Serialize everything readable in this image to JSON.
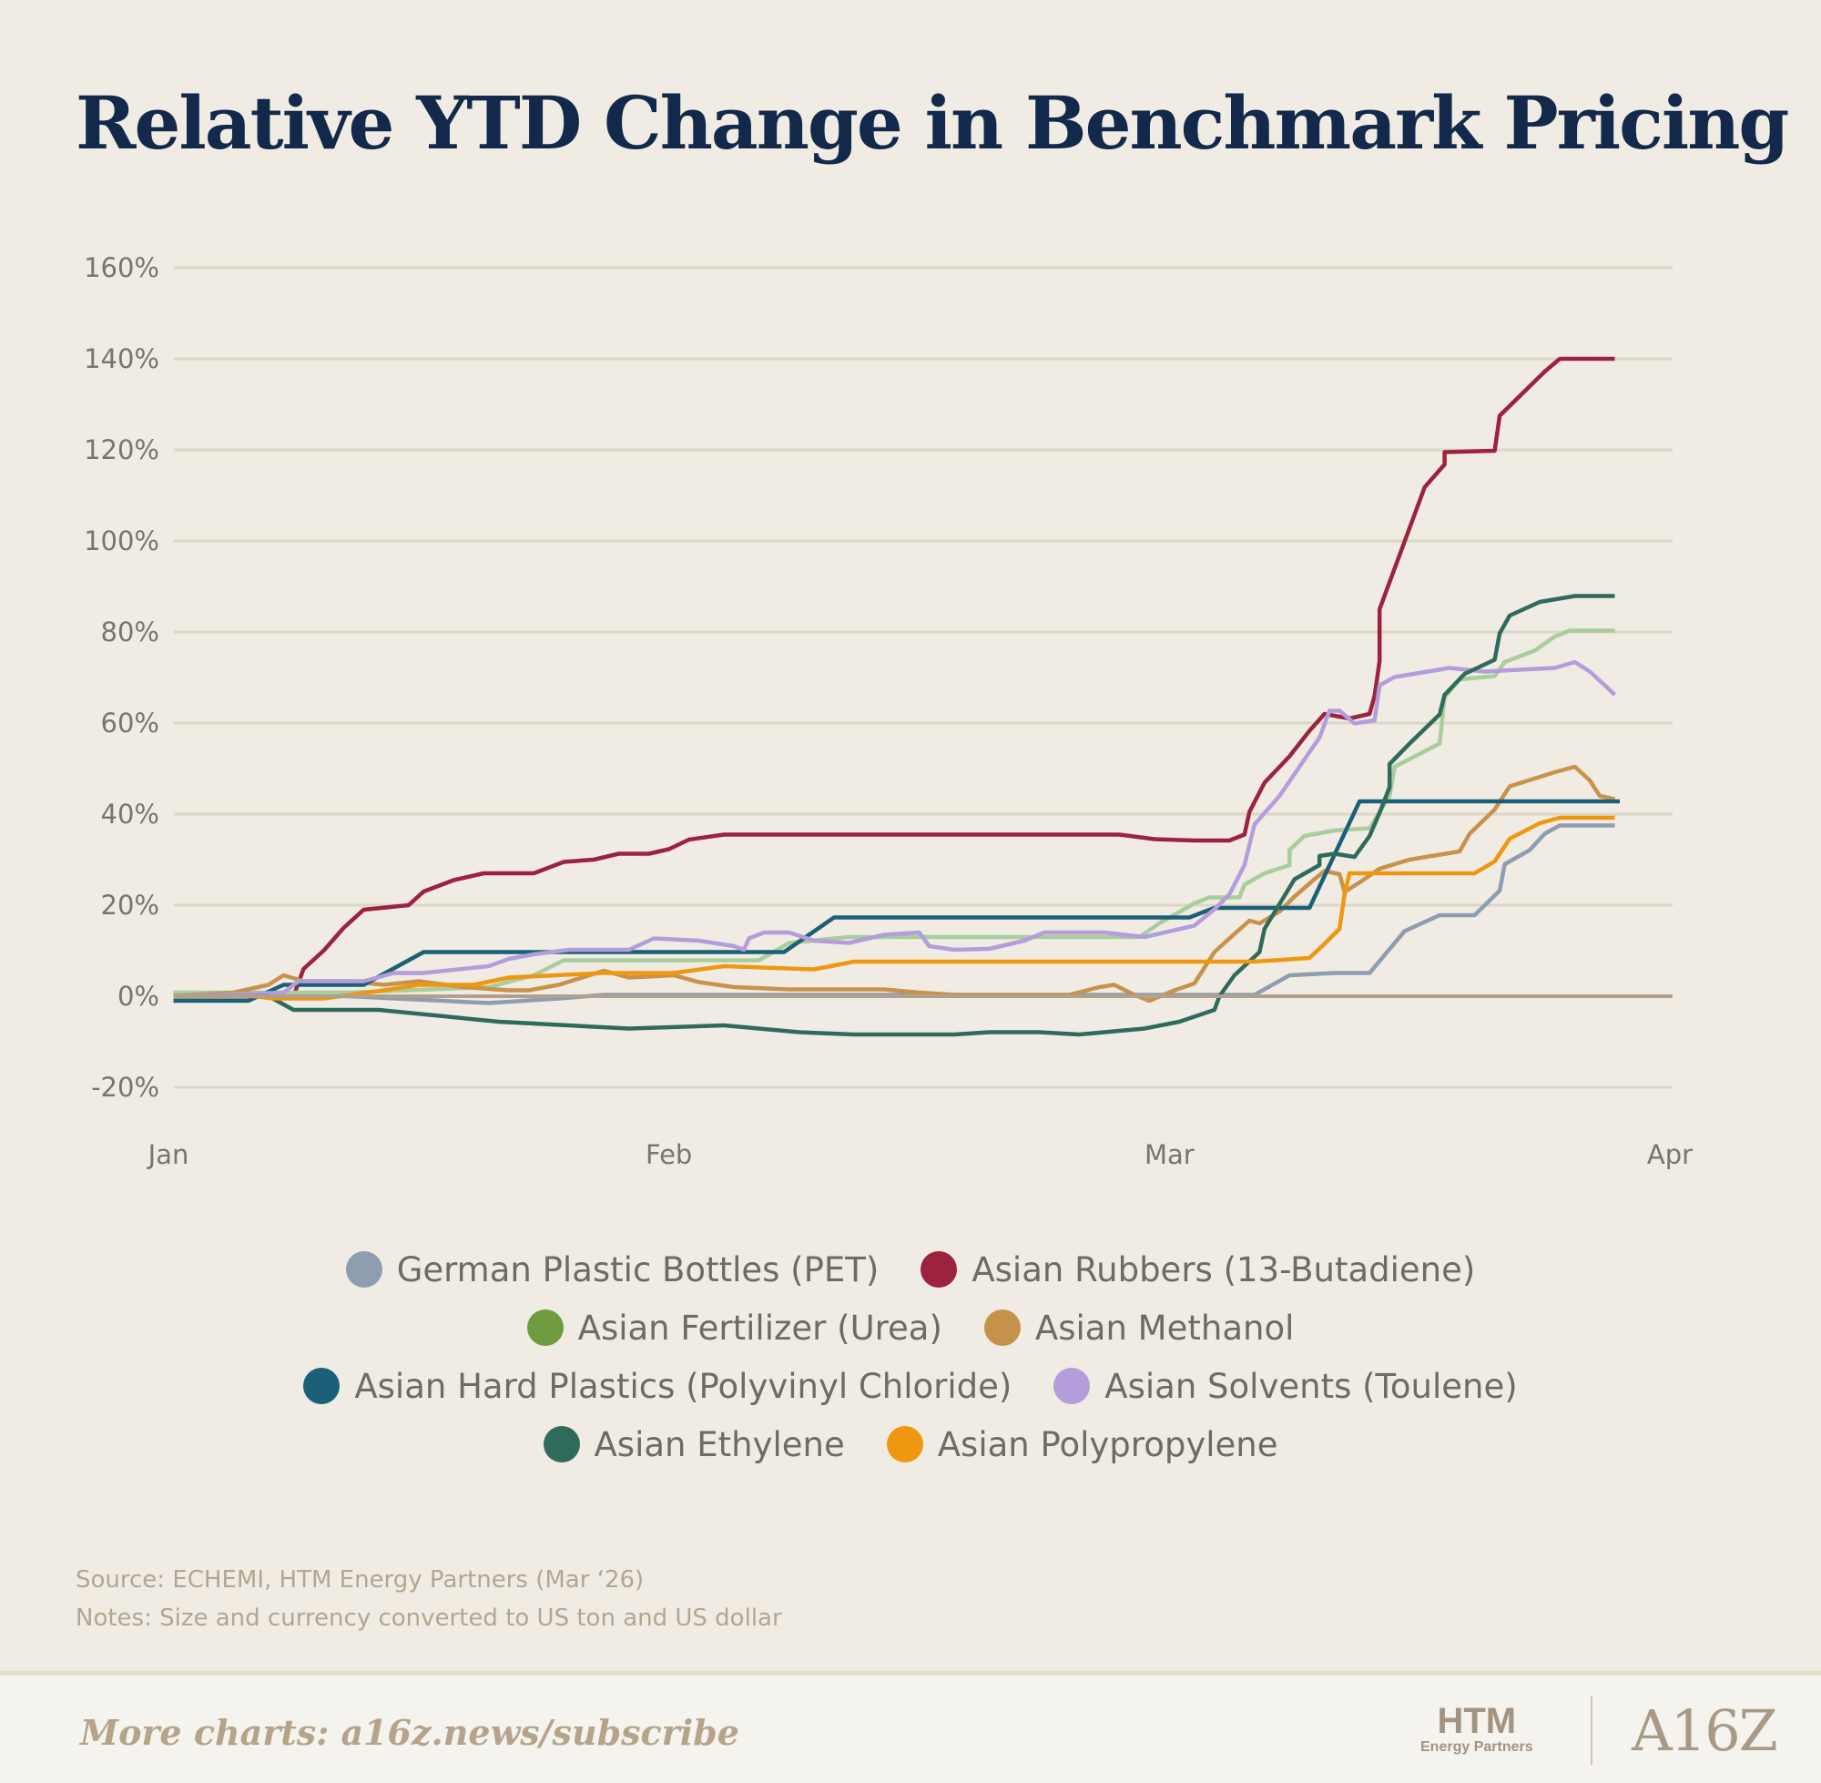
{
  "chart_data": {
    "type": "line",
    "title": "Relative YTD Change in Benchmark Pricing",
    "xlabel": "",
    "ylabel": "",
    "x_unit": "months since Jan 1",
    "x_ticks": [
      {
        "value": 0,
        "label": "Jan"
      },
      {
        "value": 1,
        "label": "Feb"
      },
      {
        "value": 2,
        "label": "Mar"
      },
      {
        "value": 3,
        "label": "Apr"
      }
    ],
    "y_ticks": [
      {
        "value": 160,
        "label": "160%"
      },
      {
        "value": 140,
        "label": "140%"
      },
      {
        "value": 120,
        "label": "120%"
      },
      {
        "value": 100,
        "label": "100%"
      },
      {
        "value": 80,
        "label": "80%"
      },
      {
        "value": 60,
        "label": "60%"
      },
      {
        "value": 40,
        "label": "40%"
      },
      {
        "value": 20,
        "label": "20%"
      },
      {
        "value": 0,
        "label": "0%"
      },
      {
        "value": -20,
        "label": "-20%"
      }
    ],
    "xlim": [
      0,
      3
    ],
    "ylim": [
      -20,
      160
    ],
    "grid": true,
    "legend_position": "bottom",
    "series": [
      {
        "name": "German Plastic Bottles (PET)",
        "color": "#8e9db0",
        "legend_color": "#8e9db0",
        "points": [
          [
            0.01,
            0
          ],
          [
            0.36,
            0
          ],
          [
            0.64,
            -1.5
          ],
          [
            0.78,
            -0.5
          ],
          [
            0.87,
            0.3
          ],
          [
            2.17,
            0.3
          ],
          [
            2.24,
            4.6
          ],
          [
            2.33,
            5.1
          ],
          [
            2.4,
            5.1
          ],
          [
            2.47,
            14.3
          ],
          [
            2.54,
            17.8
          ],
          [
            2.61,
            17.8
          ],
          [
            2.66,
            23.2
          ],
          [
            2.67,
            29
          ],
          [
            2.72,
            32.1
          ],
          [
            2.75,
            35.7
          ],
          [
            2.78,
            37.5
          ],
          [
            2.89,
            37.5
          ]
        ]
      },
      {
        "name": "Asian Rubbers (13-Butadiene)",
        "color": "#9b2340",
        "legend_color": "#9b2340",
        "points": [
          [
            0.01,
            0
          ],
          [
            0.25,
            0
          ],
          [
            0.27,
            6
          ],
          [
            0.31,
            10
          ],
          [
            0.35,
            15
          ],
          [
            0.39,
            19
          ],
          [
            0.48,
            20
          ],
          [
            0.51,
            23
          ],
          [
            0.57,
            25.5
          ],
          [
            0.63,
            27
          ],
          [
            0.73,
            27
          ],
          [
            0.79,
            29.5
          ],
          [
            0.85,
            30
          ],
          [
            0.9,
            31.3
          ],
          [
            0.96,
            31.3
          ],
          [
            1.0,
            32.3
          ],
          [
            1.04,
            34.4
          ],
          [
            1.11,
            35.5
          ],
          [
            1.9,
            35.5
          ],
          [
            1.97,
            34.5
          ],
          [
            2.05,
            34.2
          ],
          [
            2.12,
            34.2
          ],
          [
            2.15,
            35.5
          ],
          [
            2.16,
            40.5
          ],
          [
            2.19,
            46.9
          ],
          [
            2.24,
            52.7
          ],
          [
            2.28,
            58.3
          ],
          [
            2.31,
            62
          ],
          [
            2.36,
            61
          ],
          [
            2.4,
            62
          ],
          [
            2.41,
            66
          ],
          [
            2.42,
            73.6
          ],
          [
            2.42,
            85
          ],
          [
            2.51,
            111.8
          ],
          [
            2.55,
            116.8
          ],
          [
            2.55,
            119.5
          ],
          [
            2.65,
            119.8
          ],
          [
            2.66,
            127.5
          ],
          [
            2.75,
            137.2
          ],
          [
            2.78,
            140
          ],
          [
            2.89,
            140
          ]
        ]
      },
      {
        "name": "Asian Fertilizer (Urea)",
        "color": "#a9cd9c",
        "legend_color": "#6e9c3f",
        "points": [
          [
            0.01,
            0.8
          ],
          [
            0.36,
            0.8
          ],
          [
            0.64,
            2
          ],
          [
            0.73,
            4.6
          ],
          [
            0.79,
            7.9
          ],
          [
            1.18,
            7.9
          ],
          [
            1.24,
            11.7
          ],
          [
            1.36,
            13
          ],
          [
            1.94,
            13
          ],
          [
            1.98,
            16
          ],
          [
            2.05,
            20.4
          ],
          [
            2.08,
            21.7
          ],
          [
            2.14,
            21.7
          ],
          [
            2.15,
            24.5
          ],
          [
            2.19,
            27
          ],
          [
            2.24,
            28.8
          ],
          [
            2.24,
            32.1
          ],
          [
            2.27,
            35.2
          ],
          [
            2.33,
            36.4
          ],
          [
            2.4,
            36.9
          ],
          [
            2.44,
            44
          ],
          [
            2.45,
            50.4
          ],
          [
            2.54,
            55.5
          ],
          [
            2.55,
            65.7
          ],
          [
            2.58,
            69.6
          ],
          [
            2.65,
            70.3
          ],
          [
            2.67,
            73.4
          ],
          [
            2.73,
            75.9
          ],
          [
            2.77,
            79
          ],
          [
            2.8,
            80.3
          ],
          [
            2.89,
            80.3
          ]
        ]
      },
      {
        "name": "Asian Methanol",
        "color": "#c8924a",
        "legend_color": "#c4924a",
        "points": [
          [
            0.01,
            0
          ],
          [
            0.13,
            0.8
          ],
          [
            0.2,
            2.5
          ],
          [
            0.23,
            4.6
          ],
          [
            0.27,
            3.3
          ],
          [
            0.36,
            3.3
          ],
          [
            0.43,
            2.5
          ],
          [
            0.5,
            3.3
          ],
          [
            0.59,
            2
          ],
          [
            0.68,
            1.3
          ],
          [
            0.72,
            1.3
          ],
          [
            0.78,
            2.5
          ],
          [
            0.87,
            5.6
          ],
          [
            0.92,
            4.1
          ],
          [
            1.01,
            4.6
          ],
          [
            1.06,
            3.1
          ],
          [
            1.13,
            2
          ],
          [
            1.24,
            1.5
          ],
          [
            1.43,
            1.5
          ],
          [
            1.5,
            0.8
          ],
          [
            1.57,
            0.3
          ],
          [
            1.8,
            0.3
          ],
          [
            1.86,
            2
          ],
          [
            1.89,
            2.5
          ],
          [
            1.93,
            0.3
          ],
          [
            1.96,
            -1
          ],
          [
            2.01,
            1.3
          ],
          [
            2.05,
            2.8
          ],
          [
            2.09,
            9.7
          ],
          [
            2.12,
            12.7
          ],
          [
            2.16,
            16.6
          ],
          [
            2.18,
            16
          ],
          [
            2.22,
            18.6
          ],
          [
            2.25,
            21.9
          ],
          [
            2.29,
            25.7
          ],
          [
            2.31,
            27.5
          ],
          [
            2.34,
            26.8
          ],
          [
            2.35,
            22.9
          ],
          [
            2.38,
            25
          ],
          [
            2.42,
            28
          ],
          [
            2.48,
            30
          ],
          [
            2.58,
            31.8
          ],
          [
            2.6,
            35.7
          ],
          [
            2.65,
            41
          ],
          [
            2.68,
            46.1
          ],
          [
            2.77,
            49.2
          ],
          [
            2.81,
            50.4
          ],
          [
            2.84,
            47.4
          ],
          [
            2.86,
            44
          ],
          [
            2.89,
            43.3
          ]
        ]
      },
      {
        "name": "Asian Hard Plastics (Polyvinyl Chloride)",
        "color": "#1b6079",
        "legend_color": "#1b6079",
        "points": [
          [
            0.01,
            -1
          ],
          [
            0.16,
            -1
          ],
          [
            0.23,
            2.5
          ],
          [
            0.39,
            2.5
          ],
          [
            0.51,
            9.7
          ],
          [
            1.23,
            9.7
          ],
          [
            1.33,
            17.3
          ],
          [
            2.04,
            17.3
          ],
          [
            2.09,
            19.4
          ],
          [
            2.28,
            19.4
          ],
          [
            2.38,
            42.8
          ],
          [
            2.9,
            42.8
          ]
        ]
      },
      {
        "name": "Asian Solvents (Toulene)",
        "color": "#b39ddb",
        "legend_color": "#b39ddb",
        "points": [
          [
            0.01,
            0
          ],
          [
            0.23,
            0.8
          ],
          [
            0.26,
            3.3
          ],
          [
            0.39,
            3.3
          ],
          [
            0.45,
            5.1
          ],
          [
            0.51,
            5.1
          ],
          [
            0.64,
            6.6
          ],
          [
            0.68,
            8.2
          ],
          [
            0.73,
            9.2
          ],
          [
            0.8,
            10.2
          ],
          [
            0.92,
            10.2
          ],
          [
            0.97,
            12.7
          ],
          [
            1.06,
            12.2
          ],
          [
            1.13,
            11
          ],
          [
            1.15,
            10.2
          ],
          [
            1.16,
            12.7
          ],
          [
            1.19,
            14
          ],
          [
            1.24,
            14
          ],
          [
            1.29,
            12.2
          ],
          [
            1.36,
            11.7
          ],
          [
            1.43,
            13.5
          ],
          [
            1.5,
            14
          ],
          [
            1.52,
            11
          ],
          [
            1.57,
            10.2
          ],
          [
            1.64,
            10.4
          ],
          [
            1.71,
            12.2
          ],
          [
            1.75,
            14
          ],
          [
            1.87,
            14
          ],
          [
            1.95,
            13
          ],
          [
            2.05,
            15.5
          ],
          [
            2.09,
            19.1
          ],
          [
            2.12,
            22.4
          ],
          [
            2.15,
            28.8
          ],
          [
            2.17,
            37.7
          ],
          [
            2.22,
            44
          ],
          [
            2.26,
            50.4
          ],
          [
            2.3,
            56.8
          ],
          [
            2.32,
            62.7
          ],
          [
            2.34,
            62.7
          ],
          [
            2.37,
            59.9
          ],
          [
            2.41,
            60.6
          ],
          [
            2.42,
            68.3
          ],
          [
            2.45,
            70.1
          ],
          [
            2.56,
            72.1
          ],
          [
            2.63,
            71.3
          ],
          [
            2.68,
            71.6
          ],
          [
            2.77,
            72.1
          ],
          [
            2.81,
            73.4
          ],
          [
            2.84,
            71.3
          ],
          [
            2.87,
            68.3
          ],
          [
            2.89,
            66.2
          ]
        ]
      },
      {
        "name": "Asian Ethylene",
        "color": "#2f6b5b",
        "legend_color": "#2f6b5b",
        "points": [
          [
            0.01,
            0
          ],
          [
            0.2,
            0
          ],
          [
            0.25,
            -3
          ],
          [
            0.42,
            -3
          ],
          [
            0.66,
            -5.6
          ],
          [
            0.92,
            -7.1
          ],
          [
            1.11,
            -6.4
          ],
          [
            1.26,
            -7.9
          ],
          [
            1.37,
            -8.4
          ],
          [
            1.57,
            -8.4
          ],
          [
            1.64,
            -7.9
          ],
          [
            1.74,
            -7.9
          ],
          [
            1.82,
            -8.4
          ],
          [
            1.95,
            -7.1
          ],
          [
            2.02,
            -5.6
          ],
          [
            2.09,
            -3
          ],
          [
            2.1,
            0
          ],
          [
            2.13,
            4.6
          ],
          [
            2.18,
            9.7
          ],
          [
            2.19,
            14.8
          ],
          [
            2.25,
            25.7
          ],
          [
            2.3,
            28.8
          ],
          [
            2.3,
            30.8
          ],
          [
            2.33,
            31.3
          ],
          [
            2.37,
            30.6
          ],
          [
            2.4,
            35.2
          ],
          [
            2.42,
            40.3
          ],
          [
            2.44,
            45.9
          ],
          [
            2.44,
            51
          ],
          [
            2.48,
            55.5
          ],
          [
            2.54,
            61.9
          ],
          [
            2.55,
            66.2
          ],
          [
            2.59,
            70.8
          ],
          [
            2.65,
            73.9
          ],
          [
            2.66,
            79.7
          ],
          [
            2.68,
            83.6
          ],
          [
            2.74,
            86.6
          ],
          [
            2.81,
            87.9
          ],
          [
            2.89,
            87.9
          ]
        ]
      },
      {
        "name": "Asian Polypropylene",
        "color": "#ef9711",
        "legend_color": "#ef9711",
        "points": [
          [
            0.01,
            0
          ],
          [
            0.17,
            0
          ],
          [
            0.21,
            -0.5
          ],
          [
            0.31,
            -0.5
          ],
          [
            0.43,
            1.3
          ],
          [
            0.5,
            2.5
          ],
          [
            0.61,
            2.5
          ],
          [
            0.68,
            4.1
          ],
          [
            0.87,
            5.1
          ],
          [
            1.01,
            5.1
          ],
          [
            1.11,
            6.6
          ],
          [
            1.29,
            5.9
          ],
          [
            1.37,
            7.6
          ],
          [
            2.17,
            7.6
          ],
          [
            2.28,
            8.4
          ],
          [
            2.31,
            11.5
          ],
          [
            2.34,
            14.8
          ],
          [
            2.35,
            22.4
          ],
          [
            2.36,
            27
          ],
          [
            2.61,
            27
          ],
          [
            2.65,
            29.6
          ],
          [
            2.68,
            34.6
          ],
          [
            2.74,
            38
          ],
          [
            2.78,
            39.2
          ],
          [
            2.89,
            39.2
          ]
        ]
      }
    ]
  },
  "source": "Source: ECHEMI, HTM Energy Partners (Mar ‘26)",
  "notes": "Notes: Size and currency converted to US ton and US dollar",
  "footer": {
    "more_charts": "More charts: a16z.news/subscribe",
    "htm_logo": "HTM",
    "htm_sub": "Energy Partners",
    "a16z_logo": "A16Z"
  }
}
